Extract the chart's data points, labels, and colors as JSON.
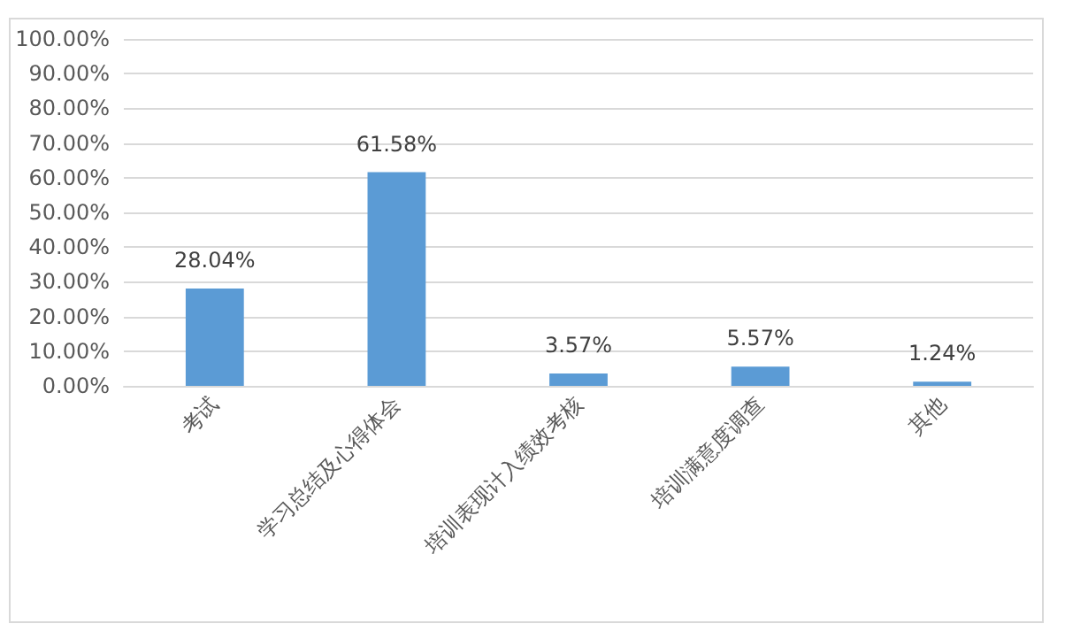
{
  "chart_data": {
    "type": "bar",
    "categories": [
      "考试",
      "学习总结及心得体会",
      "培训表现计入绩效考核",
      "培训满意度调查",
      "其他"
    ],
    "values": [
      28.04,
      61.58,
      3.57,
      5.57,
      1.24
    ],
    "value_labels": [
      "28.04%",
      "61.58%",
      "3.57%",
      "5.57%",
      "1.24%"
    ],
    "color": "#5b9bd5",
    "ylim": [
      0,
      100
    ],
    "yticks": [
      {
        "value": 0,
        "label": "0.00%"
      },
      {
        "value": 10,
        "label": "10.00%"
      },
      {
        "value": 20,
        "label": "20.00%"
      },
      {
        "value": 30,
        "label": "30.00%"
      },
      {
        "value": 40,
        "label": "40.00%"
      },
      {
        "value": 50,
        "label": "50.00%"
      },
      {
        "value": 60,
        "label": "60.00%"
      },
      {
        "value": 70,
        "label": "70.00%"
      },
      {
        "value": 80,
        "label": "80.00%"
      },
      {
        "value": 90,
        "label": "90.00%"
      },
      {
        "value": 100,
        "label": "100.00%"
      }
    ],
    "grid": "y"
  }
}
